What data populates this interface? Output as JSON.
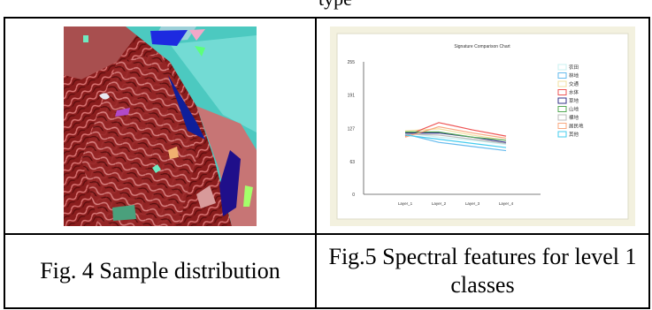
{
  "header": {
    "fragment": "type"
  },
  "figures": [
    {
      "caption": "Fig. 4 Sample distribution",
      "image": "false-color satellite image with sample polygons"
    },
    {
      "caption": "Fig.5 Spectral features for level 1 classes"
    }
  ],
  "chart_data": {
    "type": "line",
    "title": "Signature Comparison Chart",
    "x": [
      "Layer_1",
      "Layer_2",
      "Layer_3",
      "Layer_4"
    ],
    "ylim": [
      0,
      255
    ],
    "yticks": [
      0,
      63,
      127,
      191,
      255
    ],
    "legend_position": "right",
    "grid": false,
    "series": [
      {
        "name": "农田",
        "color": "#c8f0f0",
        "values": [
          118,
          110,
          104,
          96
        ]
      },
      {
        "name": "林地",
        "color": "#66bbee",
        "values": [
          116,
          100,
          92,
          84
        ]
      },
      {
        "name": "交通",
        "color": "#f0e0a0",
        "values": [
          122,
          126,
          114,
          104
        ]
      },
      {
        "name": "水体",
        "color": "#ee5555",
        "values": [
          112,
          138,
          124,
          112
        ]
      },
      {
        "name": "草地",
        "color": "#333388",
        "values": [
          118,
          118,
          110,
          100
        ]
      },
      {
        "name": "山地",
        "color": "#55aa55",
        "values": [
          120,
          120,
          110,
          104
        ]
      },
      {
        "name": "裸地",
        "color": "#bbbbbb",
        "values": [
          116,
          114,
          106,
          98
        ]
      },
      {
        "name": "居民地",
        "color": "#f8a880",
        "values": [
          110,
          130,
          118,
          108
        ]
      },
      {
        "name": "其他",
        "color": "#44ccee",
        "values": [
          114,
          106,
          98,
          90
        ]
      }
    ]
  }
}
